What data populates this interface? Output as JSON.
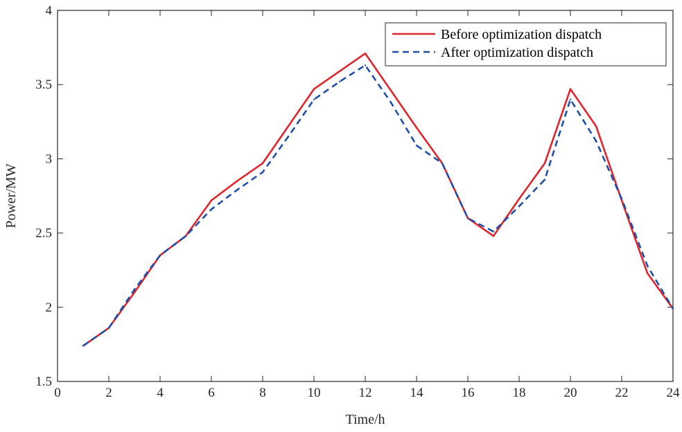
{
  "chart_data": {
    "type": "line",
    "xlabel": "Time/h",
    "ylabel": "Power/MW",
    "xlim": [
      0,
      24
    ],
    "ylim": [
      1.5,
      4
    ],
    "xticks": [
      "0",
      "2",
      "4",
      "6",
      "8",
      "10",
      "12",
      "14",
      "16",
      "18",
      "20",
      "22",
      "24"
    ],
    "yticks": [
      "1.5",
      "2",
      "2.5",
      "3",
      "3.5",
      "4"
    ],
    "grid": false,
    "legend_position": "top-right",
    "x": [
      1,
      2,
      3,
      4,
      5,
      6,
      7,
      8,
      9,
      10,
      11,
      12,
      13,
      14,
      15,
      16,
      17,
      18,
      19,
      20,
      21,
      22,
      23,
      24
    ],
    "series": [
      {
        "name": "Before optimization dispatch",
        "color": "#e0242b",
        "style": "solid",
        "values": [
          1.74,
          1.86,
          2.1,
          2.35,
          2.48,
          2.72,
          2.85,
          2.97,
          3.22,
          3.47,
          3.59,
          3.71,
          3.46,
          3.21,
          2.97,
          2.6,
          2.48,
          2.73,
          2.97,
          3.47,
          3.22,
          2.72,
          2.23,
          1.99
        ]
      },
      {
        "name": "After optimization dispatch",
        "color": "#1f4ea8",
        "style": "dashed",
        "values": [
          1.74,
          1.86,
          2.12,
          2.35,
          2.48,
          2.66,
          2.79,
          2.91,
          3.15,
          3.4,
          3.52,
          3.63,
          3.38,
          3.09,
          2.97,
          2.6,
          2.51,
          2.68,
          2.86,
          3.4,
          3.12,
          2.73,
          2.28,
          1.99
        ]
      }
    ]
  }
}
